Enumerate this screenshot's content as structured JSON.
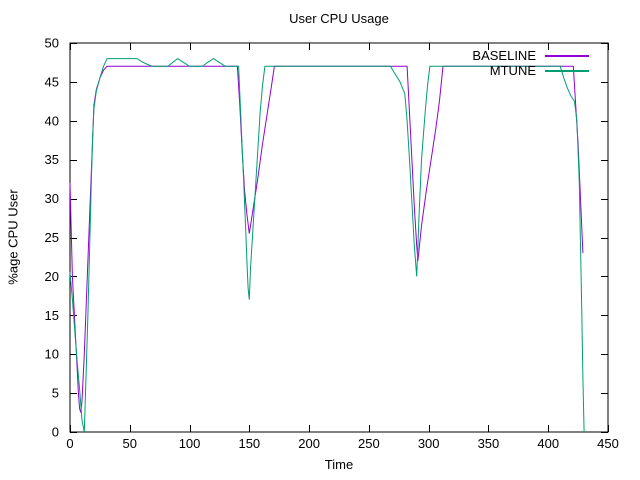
{
  "chart_data": {
    "type": "line",
    "title": "User CPU Usage",
    "xlabel": "Time",
    "ylabel": "%age CPU User",
    "xlim": [
      0,
      450
    ],
    "ylim": [
      0,
      50
    ],
    "xticks": [
      0,
      50,
      100,
      150,
      200,
      250,
      300,
      350,
      400,
      450
    ],
    "yticks": [
      0,
      5,
      10,
      15,
      20,
      25,
      30,
      35,
      40,
      45,
      50
    ],
    "grid": false,
    "legend_position": "top-right-inside",
    "series": [
      {
        "name": "BASELINE",
        "color": "#9400d3",
        "points": [
          [
            0,
            32
          ],
          [
            1,
            26
          ],
          [
            2,
            20
          ],
          [
            3,
            17
          ],
          [
            5,
            11
          ],
          [
            7,
            5
          ],
          [
            8,
            3
          ],
          [
            9,
            2.5
          ],
          [
            10,
            4
          ],
          [
            12,
            10
          ],
          [
            14,
            18
          ],
          [
            16,
            26
          ],
          [
            18,
            34
          ],
          [
            20,
            42
          ],
          [
            22,
            44
          ],
          [
            25,
            45.5
          ],
          [
            28,
            46.5
          ],
          [
            31,
            47
          ],
          [
            140,
            47
          ],
          [
            142,
            42
          ],
          [
            144,
            36
          ],
          [
            146,
            31
          ],
          [
            148,
            28
          ],
          [
            150,
            25.5
          ],
          [
            153,
            28.5
          ],
          [
            157,
            32.5
          ],
          [
            161,
            37
          ],
          [
            165,
            41
          ],
          [
            168,
            44
          ],
          [
            171,
            47
          ],
          [
            282,
            47
          ],
          [
            284,
            41
          ],
          [
            286,
            35
          ],
          [
            288,
            29
          ],
          [
            290,
            24
          ],
          [
            291,
            22
          ],
          [
            294,
            26.5
          ],
          [
            298,
            31
          ],
          [
            302,
            35
          ],
          [
            306,
            39
          ],
          [
            309,
            42.5
          ],
          [
            312,
            47
          ],
          [
            421,
            47
          ],
          [
            423,
            42
          ],
          [
            425,
            37
          ],
          [
            427,
            30
          ],
          [
            428,
            26.5
          ],
          [
            429,
            23
          ]
        ]
      },
      {
        "name": "MTUNE",
        "color": "#009e73",
        "points": [
          [
            0,
            20.5
          ],
          [
            2,
            17
          ],
          [
            4,
            13
          ],
          [
            6,
            9
          ],
          [
            8,
            5.5
          ],
          [
            10,
            1.5
          ],
          [
            12,
            0
          ],
          [
            13,
            5
          ],
          [
            14,
            10
          ],
          [
            15,
            15
          ],
          [
            16,
            21
          ],
          [
            17,
            27
          ],
          [
            18,
            33
          ],
          [
            19,
            38
          ],
          [
            20,
            41.5
          ],
          [
            22,
            43.8
          ],
          [
            25,
            45.5
          ],
          [
            28,
            47
          ],
          [
            31,
            48
          ],
          [
            56,
            48
          ],
          [
            60,
            47.6
          ],
          [
            64,
            47.3
          ],
          [
            69,
            47
          ],
          [
            82,
            47
          ],
          [
            86,
            47.5
          ],
          [
            90,
            48
          ],
          [
            95,
            47.5
          ],
          [
            100,
            47
          ],
          [
            111,
            47
          ],
          [
            115,
            47.5
          ],
          [
            120,
            48
          ],
          [
            125,
            47.5
          ],
          [
            130,
            47
          ],
          [
            141,
            47
          ],
          [
            143,
            40
          ],
          [
            145,
            33
          ],
          [
            147,
            26
          ],
          [
            148,
            22
          ],
          [
            149,
            18.5
          ],
          [
            150,
            17
          ],
          [
            151,
            21
          ],
          [
            153,
            26
          ],
          [
            155,
            31
          ],
          [
            157,
            36
          ],
          [
            159,
            41
          ],
          [
            161,
            44.5
          ],
          [
            163,
            47
          ],
          [
            268,
            47
          ],
          [
            272,
            46
          ],
          [
            276,
            45
          ],
          [
            280,
            43.5
          ],
          [
            282,
            40
          ],
          [
            284,
            35
          ],
          [
            286,
            29.5
          ],
          [
            288,
            24
          ],
          [
            290,
            20
          ],
          [
            292,
            28
          ],
          [
            294,
            35
          ],
          [
            297,
            41
          ],
          [
            299,
            44.5
          ],
          [
            301,
            47
          ],
          [
            410,
            47
          ],
          [
            413,
            45.5
          ],
          [
            416,
            44.2
          ],
          [
            419,
            43.2
          ],
          [
            422,
            42.5
          ],
          [
            424,
            40
          ],
          [
            426,
            32
          ],
          [
            427,
            24
          ],
          [
            428,
            16
          ],
          [
            429,
            7
          ],
          [
            430,
            0
          ]
        ]
      }
    ]
  }
}
